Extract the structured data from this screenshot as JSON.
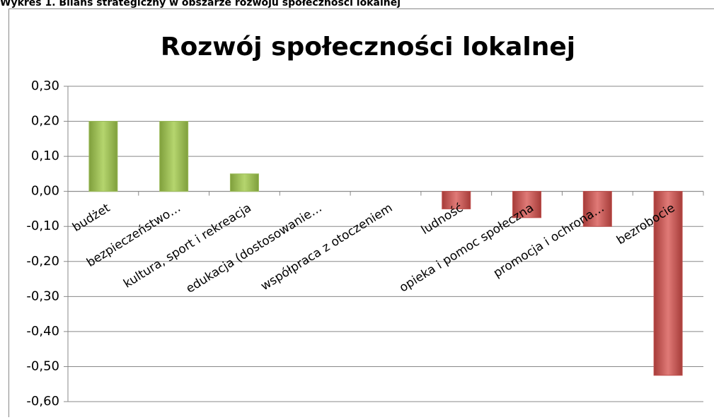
{
  "caption": "Wykres 1. Bilans strategiczny w obszarze rozwoju społeczności lokalnej",
  "chart_data": {
    "type": "bar",
    "title": "Rozwój społeczności lokalnej",
    "categories": [
      "budżet",
      "bezpieczeństwo…",
      "kultura, sport i rekreacja",
      "edukacja (dostosowanie…",
      "współpraca z otoczeniem",
      "ludność",
      "opieka i pomoc społeczna",
      "promocja i ochrona…",
      "bezrobocie"
    ],
    "values": [
      0.2,
      0.2,
      0.05,
      0,
      0,
      -0.05,
      -0.075,
      -0.1,
      -0.525
    ],
    "positive_color": "#9bbb59",
    "negative_color": "#c0504d",
    "ylim": [
      -0.6,
      0.3
    ],
    "yticks": [
      {
        "value": 0.3,
        "label": "0,30"
      },
      {
        "value": 0.2,
        "label": "0,20"
      },
      {
        "value": 0.1,
        "label": "0,10"
      },
      {
        "value": 0,
        "label": "0,00"
      },
      {
        "value": -0.1,
        "label": "-0,10"
      },
      {
        "value": -0.2,
        "label": "-0,20"
      },
      {
        "value": -0.3,
        "label": "-0,30"
      },
      {
        "value": -0.4,
        "label": "-0,40"
      },
      {
        "value": -0.5,
        "label": "-0,50"
      },
      {
        "value": -0.6,
        "label": "-0,60"
      }
    ],
    "grid": true
  }
}
